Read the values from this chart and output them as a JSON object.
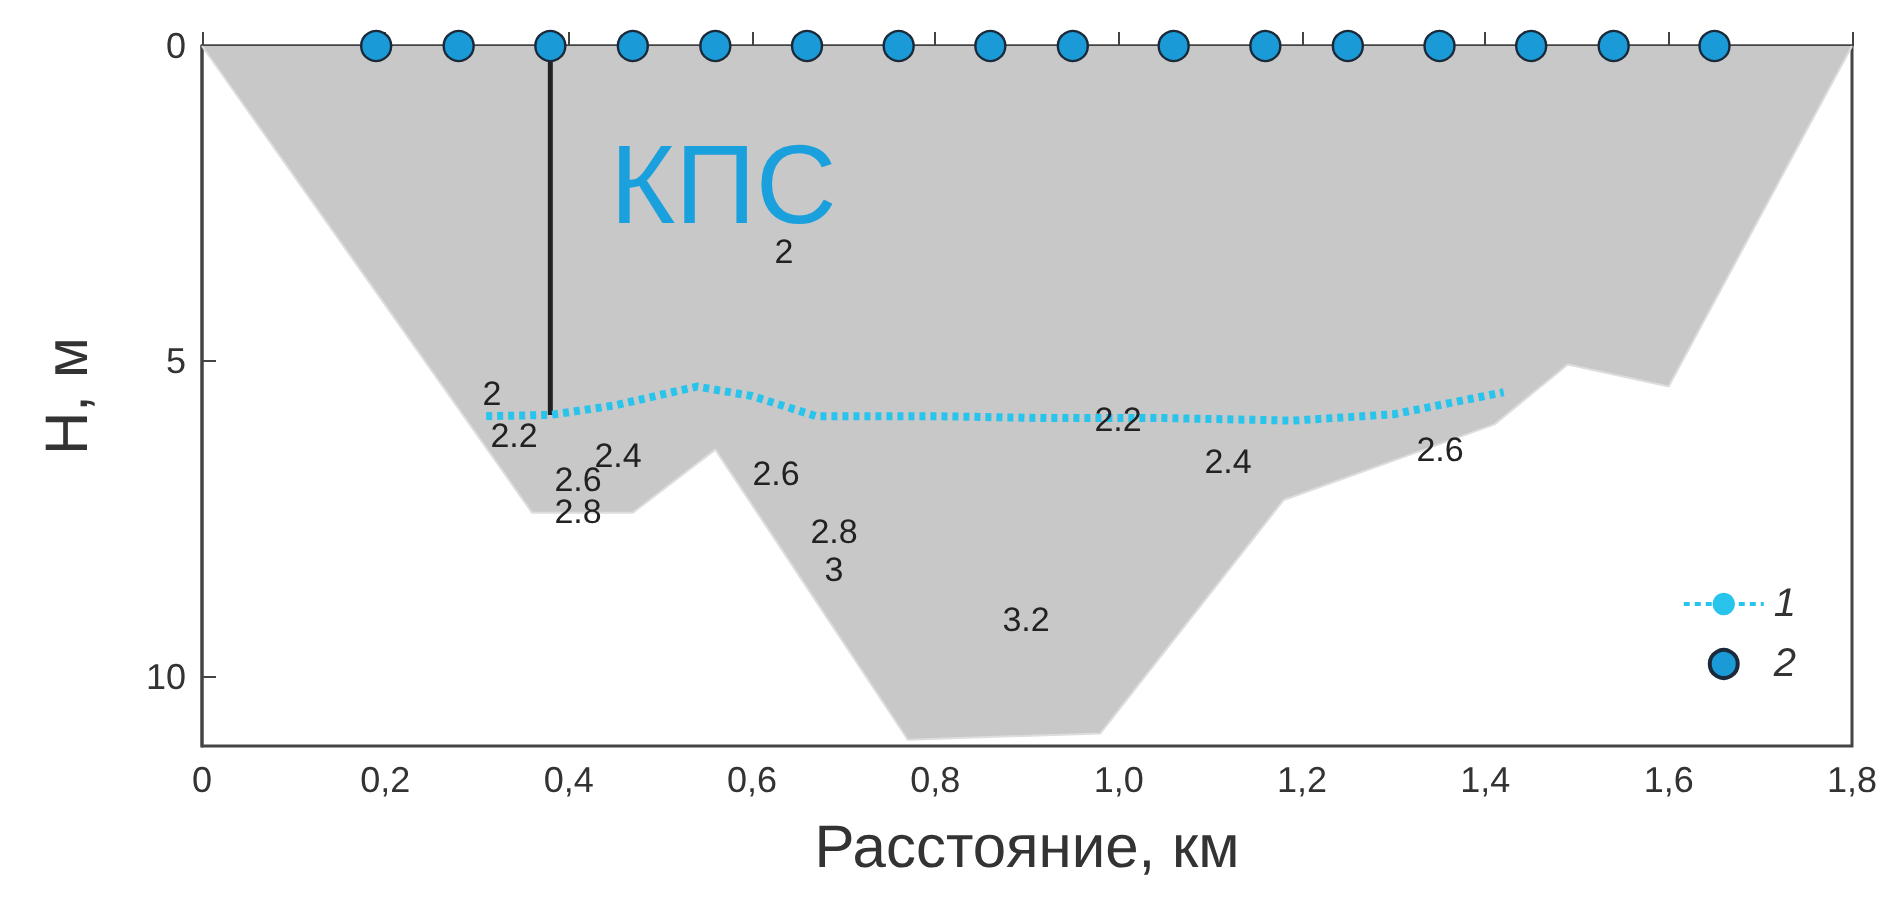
{
  "chart_data": {
    "type": "line",
    "xlabel": "Расстояние, км",
    "ylabel": "H, м",
    "xlim": [
      0,
      1.8
    ],
    "xticks": [
      0,
      {
        "value": 0.2,
        "label": "0,2"
      },
      {
        "value": 0.4,
        "label": "0,4"
      },
      {
        "value": 0.6,
        "label": "0,6"
      },
      {
        "value": 0.8,
        "label": "0,8"
      },
      {
        "value": 1.0,
        "label": "1,0"
      },
      {
        "value": 1.2,
        "label": "1,2"
      },
      {
        "value": 1.4,
        "label": "1,4"
      },
      {
        "value": 1.6,
        "label": "1,6"
      },
      {
        "value": 1.8,
        "label": "1,8"
      }
    ],
    "ylim": [
      11.1,
      0
    ],
    "yticks": [
      0,
      5,
      10
    ],
    "grid": false,
    "legend": "bottom right",
    "series": [
      {
        "type": "area",
        "color": "#c8c8c8",
        "x": [
          0,
          0.36,
          0.47,
          0.56,
          0.77,
          0.98,
          1.18,
          1.41,
          1.49,
          1.6,
          1.8
        ],
        "values": [
          0,
          7.4,
          7.4,
          6.4,
          11.0,
          10.9,
          7.2,
          6.0,
          5.05,
          5.4,
          0
        ]
      },
      {
        "type": "line",
        "color": "#222222",
        "marker": "none",
        "x": [
          0.38,
          0.38
        ],
        "values": [
          0,
          5.85
        ]
      },
      {
        "type": "line",
        "name": "1",
        "color": "#29c4ec",
        "line_style": "dashed",
        "marker": "none",
        "x": [
          0.31,
          0.38,
          0.45,
          0.54,
          0.6,
          0.67,
          0.8,
          0.92,
          1.05,
          1.19,
          1.3,
          1.42
        ],
        "values": [
          5.87,
          5.85,
          5.7,
          5.4,
          5.55,
          5.87,
          5.87,
          5.9,
          5.9,
          5.94,
          5.84,
          5.49
        ]
      },
      {
        "type": "scatter",
        "name": "2",
        "color": "#1a9ad6",
        "marker": "circle",
        "x": [
          0.19,
          0.28,
          0.38,
          0.47,
          0.56,
          0.66,
          0.76,
          0.86,
          0.95,
          1.06,
          1.16,
          1.25,
          1.35,
          1.45,
          1.54,
          1.65
        ],
        "values": [
          0,
          0,
          0,
          0,
          0,
          0,
          0,
          0,
          0,
          0,
          0,
          0,
          0,
          0,
          0,
          0
        ]
      }
    ],
    "annotations": [
      "КПС",
      "2",
      "2.2",
      "2.4",
      "2.6",
      "2.8",
      "2",
      "2.6",
      "2.8",
      "3",
      "3.2",
      "2.2",
      "2.4",
      "2.6"
    ]
  }
}
